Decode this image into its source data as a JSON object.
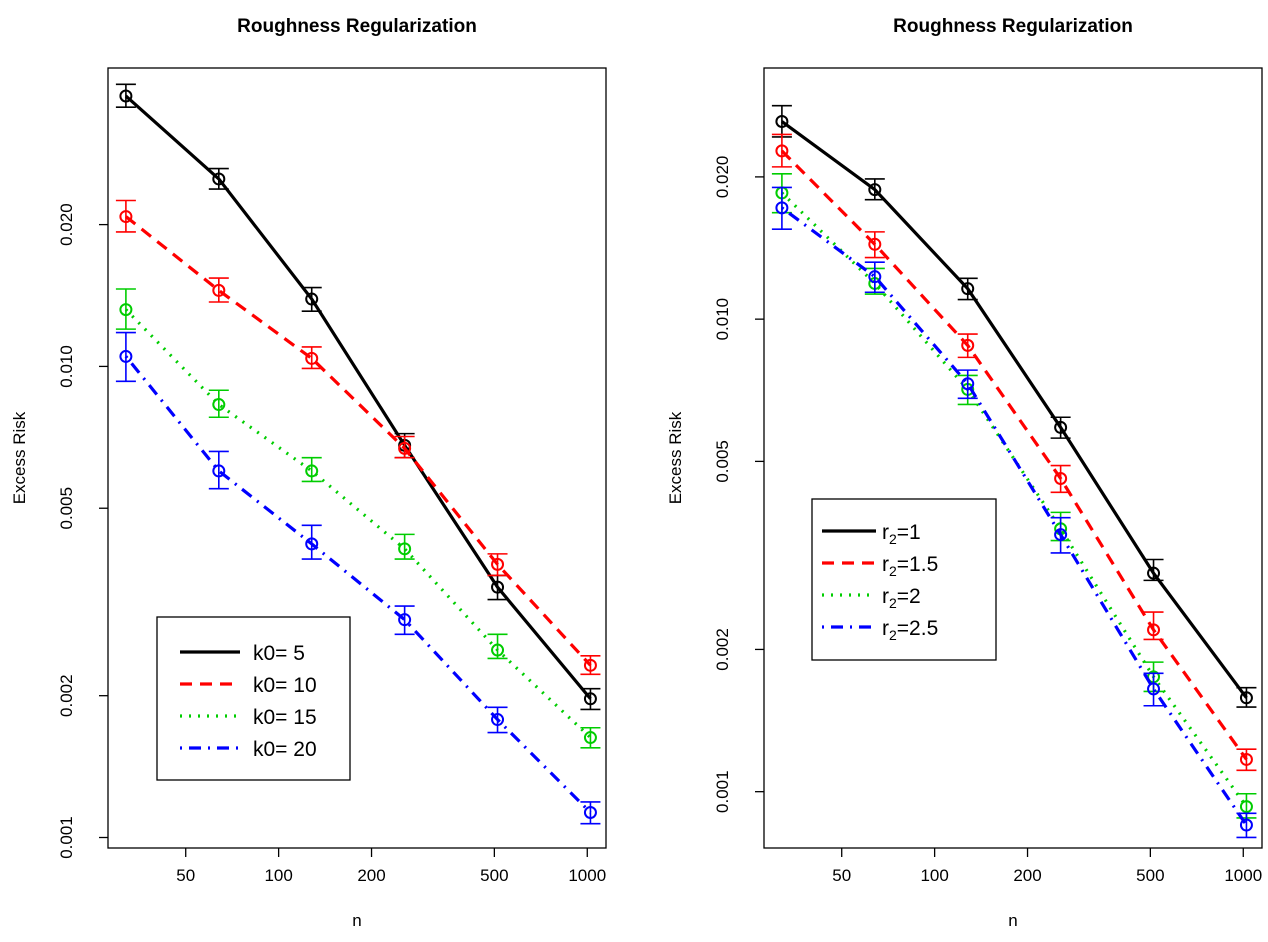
{
  "chart_data": [
    {
      "type": "line",
      "title": "Roughness Regularization",
      "xlabel": "n",
      "ylabel": "Excess Risk",
      "xscale": "log",
      "yscale": "log",
      "x_ticks": [
        "50",
        "100",
        "200",
        "500",
        "1000"
      ],
      "y_ticks": [
        "0.001",
        "0.002",
        "0.005",
        "0.010",
        "0.020"
      ],
      "xlim": [
        28,
        1150
      ],
      "ylim": [
        0.00095,
        0.043
      ],
      "legend_position": "bottom-left",
      "x": [
        32,
        64,
        128,
        256,
        512,
        1024
      ],
      "series": [
        {
          "name": "k0= 5",
          "color": "#000000",
          "dash": "solid",
          "values": [
            0.0375,
            0.025,
            0.0139,
            0.0068,
            0.0034,
            0.00197
          ],
          "err": [
            [
              0.0355,
              0.0397
            ],
            [
              0.0238,
              0.0263
            ],
            [
              0.0131,
              0.0147
            ],
            [
              0.0064,
              0.0072
            ],
            [
              0.0032,
              0.0036
            ],
            [
              0.00187,
              0.00207
            ]
          ]
        },
        {
          "name": "k0= 10",
          "color": "#ff0000",
          "dash": "dashed",
          "values": [
            0.0208,
            0.0145,
            0.0104,
            0.0067,
            0.0038,
            0.00232
          ],
          "err": [
            [
              0.0193,
              0.0225
            ],
            [
              0.0137,
              0.0154
            ],
            [
              0.0099,
              0.011
            ],
            [
              0.0064,
              0.0071
            ],
            [
              0.0036,
              0.004
            ],
            [
              0.00222,
              0.00243
            ]
          ]
        },
        {
          "name": "k0= 15",
          "color": "#00cd00",
          "dash": "dotted",
          "values": [
            0.0132,
            0.0083,
            0.006,
            0.0041,
            0.0025,
            0.00163
          ],
          "err": [
            [
              0.012,
              0.0146
            ],
            [
              0.0078,
              0.0089
            ],
            [
              0.0057,
              0.0064
            ],
            [
              0.0039,
              0.0044
            ],
            [
              0.0024,
              0.0027
            ],
            [
              0.00155,
              0.00171
            ]
          ]
        },
        {
          "name": "k0= 20",
          "color": "#0000ff",
          "dash": "dotdash",
          "values": [
            0.0105,
            0.006,
            0.0042,
            0.0029,
            0.00178,
            0.00113
          ],
          "err": [
            [
              0.0093,
              0.0118
            ],
            [
              0.0055,
              0.0066
            ],
            [
              0.0039,
              0.0046
            ],
            [
              0.0027,
              0.0031
            ],
            [
              0.00167,
              0.00189
            ],
            [
              0.00107,
              0.00119
            ]
          ]
        }
      ]
    },
    {
      "type": "line",
      "title": "Roughness Regularization",
      "xlabel": "n",
      "ylabel": "Excess Risk",
      "xscale": "log",
      "yscale": "log",
      "x_ticks": [
        "50",
        "100",
        "200",
        "500",
        "1000"
      ],
      "y_ticks": [
        "0.001",
        "0.002",
        "0.005",
        "0.010",
        "0.020"
      ],
      "xlim": [
        28,
        1150
      ],
      "ylim": [
        0.00076,
        0.034
      ],
      "legend_position": "middle-left",
      "x": [
        32,
        64,
        128,
        256,
        512,
        1024
      ],
      "series": [
        {
          "name": "r2=1",
          "label_base": "r",
          "label_sub": "2",
          "label_rest": "=1",
          "color": "#000000",
          "dash": "solid",
          "values": [
            0.0262,
            0.0188,
            0.0116,
            0.0059,
            0.0029,
            0.00158
          ],
          "err": [
            [
              0.0243,
              0.0283
            ],
            [
              0.0179,
              0.0198
            ],
            [
              0.011,
              0.0122
            ],
            [
              0.0056,
              0.0062
            ],
            [
              0.0028,
              0.0031
            ],
            [
              0.00151,
              0.00166
            ]
          ]
        },
        {
          "name": "r2=1.5",
          "label_base": "r",
          "label_sub": "2",
          "label_rest": "=1.5",
          "color": "#ff0000",
          "dash": "dashed",
          "values": [
            0.0227,
            0.0144,
            0.0088,
            0.0046,
            0.0022,
            0.00117
          ],
          "err": [
            [
              0.021,
              0.0246
            ],
            [
              0.0135,
              0.0153
            ],
            [
              0.0083,
              0.0093
            ],
            [
              0.0043,
              0.0049
            ],
            [
              0.0021,
              0.0024
            ],
            [
              0.00111,
              0.00123
            ]
          ]
        },
        {
          "name": "r2=2",
          "label_base": "r",
          "label_sub": "2",
          "label_rest": "=2",
          "color": "#00cd00",
          "dash": "dotted",
          "values": [
            0.0185,
            0.0119,
            0.0071,
            0.0036,
            0.00175,
            0.00093
          ],
          "err": [
            [
              0.0168,
              0.0203
            ],
            [
              0.0113,
              0.0128
            ],
            [
              0.0066,
              0.0076
            ],
            [
              0.0034,
              0.0039
            ],
            [
              0.00163,
              0.00188
            ],
            [
              0.00088,
              0.00099
            ]
          ]
        },
        {
          "name": "r2=2.5",
          "label_base": "r",
          "label_sub": "2",
          "label_rest": "=2.5",
          "color": "#0000ff",
          "dash": "dotdash",
          "values": [
            0.0172,
            0.0123,
            0.0073,
            0.0035,
            0.00165,
            0.00085
          ],
          "err": [
            [
              0.0155,
              0.019
            ],
            [
              0.0114,
              0.0132
            ],
            [
              0.0068,
              0.0078
            ],
            [
              0.0032,
              0.0038
            ],
            [
              0.00152,
              0.00178
            ],
            [
              0.0008,
              0.0009
            ]
          ]
        }
      ]
    }
  ]
}
